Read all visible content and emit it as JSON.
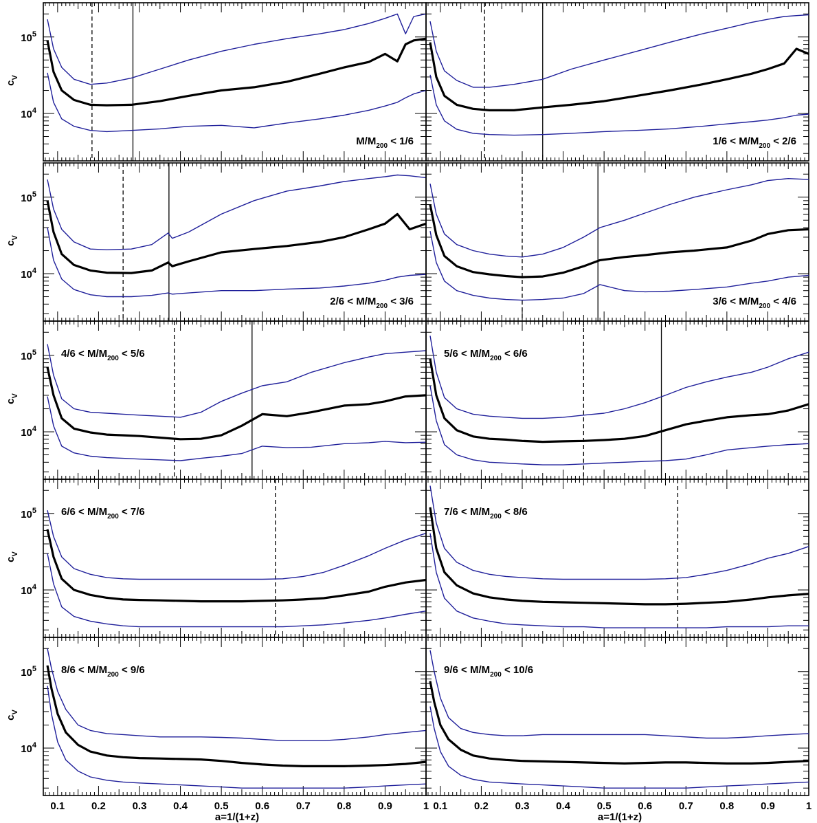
{
  "chart_data": {
    "type": "line",
    "xlabel": "a=1/(1+z)",
    "ylabel": "c",
    "ylabel_sub": "V",
    "yscale": "log",
    "xlim": [
      0.065,
      1.0
    ],
    "ylim": [
      2400,
      280000
    ],
    "x_ticks": [
      "0.1",
      "0.2",
      "0.3",
      "0.4",
      "0.5",
      "0.6",
      "0.7",
      "0.8",
      "0.9",
      "1"
    ],
    "y_ticks": [
      {
        "value": 10000,
        "base": "10",
        "exp": "4"
      },
      {
        "value": 100000,
        "base": "10",
        "exp": "5"
      }
    ],
    "series_colors": {
      "median": "#000000",
      "upper": "#1f1f9a",
      "lower": "#1f1f9a"
    },
    "panels": [
      {
        "label": "M/M",
        "label_sub": "200",
        "label_rest": " < 1/6",
        "label_pos": "bottom-right",
        "dashed_x": 0.184,
        "solid_x": 0.284,
        "x": [
          0.075,
          0.09,
          0.11,
          0.14,
          0.18,
          0.22,
          0.28,
          0.35,
          0.42,
          0.5,
          0.58,
          0.66,
          0.74,
          0.8,
          0.86,
          0.9,
          0.93,
          0.95,
          0.97,
          1.0
        ],
        "median": [
          90000,
          35000,
          20000,
          15000,
          13000,
          12800,
          13000,
          14500,
          17000,
          20000,
          22000,
          26000,
          33000,
          40000,
          47000,
          60000,
          48000,
          80000,
          90000,
          95000
        ],
        "upper": [
          170000,
          70000,
          40000,
          28000,
          24000,
          25000,
          29000,
          38000,
          50000,
          65000,
          80000,
          95000,
          110000,
          125000,
          150000,
          175000,
          200000,
          110000,
          185000,
          200000
        ],
        "lower": [
          34000,
          14000,
          8500,
          6800,
          6000,
          5800,
          6000,
          6300,
          6800,
          7000,
          6500,
          7500,
          8500,
          9500,
          11000,
          12500,
          14000,
          16000,
          18000,
          20000
        ]
      },
      {
        "label": "1/6 < M/M",
        "label_sub": "200",
        "label_rest": " < 2/6",
        "label_pos": "bottom-right",
        "dashed_x": 0.208,
        "solid_x": 0.35,
        "x": [
          0.075,
          0.09,
          0.11,
          0.14,
          0.18,
          0.22,
          0.28,
          0.35,
          0.42,
          0.5,
          0.58,
          0.66,
          0.74,
          0.8,
          0.86,
          0.9,
          0.94,
          0.97,
          1.0
        ],
        "median": [
          85000,
          30000,
          17000,
          13000,
          11500,
          11000,
          11000,
          12000,
          13000,
          14500,
          17000,
          20000,
          24000,
          28000,
          33000,
          38000,
          45000,
          70000,
          60000
        ],
        "upper": [
          160000,
          65000,
          36000,
          27000,
          22000,
          22000,
          24000,
          28000,
          38000,
          50000,
          65000,
          85000,
          110000,
          130000,
          155000,
          170000,
          185000,
          190000,
          195000
        ],
        "lower": [
          32000,
          13000,
          8000,
          6200,
          5500,
          5300,
          5200,
          5300,
          5500,
          5800,
          6000,
          6300,
          6800,
          7300,
          7800,
          8200,
          8800,
          9500,
          9800
        ]
      },
      {
        "label": "2/6 < M/M",
        "label_sub": "200",
        "label_rest": " < 3/6",
        "label_pos": "bottom-right",
        "dashed_x": 0.26,
        "solid_x": 0.372,
        "x": [
          0.075,
          0.09,
          0.11,
          0.14,
          0.18,
          0.22,
          0.28,
          0.33,
          0.37,
          0.38,
          0.42,
          0.5,
          0.58,
          0.66,
          0.74,
          0.8,
          0.86,
          0.9,
          0.93,
          0.96,
          1.0
        ],
        "median": [
          90000,
          35000,
          18000,
          13000,
          11000,
          10300,
          10200,
          11000,
          14000,
          12500,
          14500,
          19000,
          21000,
          23000,
          26000,
          30000,
          38000,
          45000,
          60000,
          38000,
          45000
        ],
        "upper": [
          170000,
          70000,
          38000,
          26000,
          21000,
          20500,
          21000,
          24000,
          34000,
          29000,
          35000,
          60000,
          90000,
          120000,
          140000,
          160000,
          175000,
          185000,
          195000,
          190000,
          180000
        ],
        "lower": [
          40000,
          15000,
          8500,
          6200,
          5300,
          5000,
          5000,
          5200,
          5600,
          5400,
          5600,
          6000,
          6000,
          6300,
          6500,
          6900,
          7500,
          8200,
          9000,
          9500,
          9800
        ]
      },
      {
        "label": "3/6 < M/M",
        "label_sub": "200",
        "label_rest": " < 4/6",
        "label_pos": "bottom-right",
        "dashed_x": 0.3,
        "solid_x": 0.485,
        "x": [
          0.075,
          0.09,
          0.11,
          0.14,
          0.18,
          0.22,
          0.26,
          0.3,
          0.35,
          0.4,
          0.45,
          0.49,
          0.55,
          0.6,
          0.66,
          0.72,
          0.8,
          0.86,
          0.9,
          0.95,
          1.0
        ],
        "median": [
          80000,
          32000,
          17000,
          12500,
          10500,
          9800,
          9300,
          9000,
          9200,
          10300,
          12500,
          15000,
          16500,
          17500,
          19000,
          20000,
          22000,
          27000,
          33000,
          37000,
          38000
        ],
        "upper": [
          150000,
          60000,
          33000,
          24000,
          20000,
          18000,
          17000,
          16500,
          18000,
          22000,
          30000,
          40000,
          50000,
          62000,
          80000,
          100000,
          125000,
          145000,
          165000,
          175000,
          170000
        ],
        "lower": [
          36000,
          14000,
          8000,
          6000,
          5200,
          4800,
          4600,
          4500,
          4600,
          4800,
          5500,
          7200,
          6000,
          5800,
          5900,
          6200,
          6700,
          7500,
          8000,
          9000,
          9500
        ]
      },
      {
        "label": "4/6 < M/M",
        "label_sub": "200",
        "label_rest": " < 5/6",
        "label_pos": "top-left",
        "dashed_x": 0.385,
        "solid_x": 0.575,
        "x": [
          0.075,
          0.09,
          0.11,
          0.14,
          0.18,
          0.22,
          0.26,
          0.3,
          0.35,
          0.4,
          0.45,
          0.5,
          0.55,
          0.6,
          0.66,
          0.72,
          0.8,
          0.86,
          0.9,
          0.95,
          1.0
        ],
        "median": [
          70000,
          30000,
          15000,
          11000,
          9800,
          9200,
          9000,
          8800,
          8400,
          8000,
          8100,
          9000,
          12000,
          17000,
          16000,
          18000,
          22000,
          23000,
          25000,
          29000,
          30000
        ],
        "upper": [
          140000,
          55000,
          27000,
          20000,
          18000,
          17500,
          17000,
          16500,
          16000,
          15500,
          18000,
          25000,
          32000,
          40000,
          45000,
          60000,
          80000,
          95000,
          105000,
          110000,
          115000
        ],
        "lower": [
          29000,
          12000,
          6500,
          5300,
          4800,
          4600,
          4500,
          4400,
          4300,
          4200,
          4500,
          4800,
          5200,
          6500,
          6200,
          6300,
          7000,
          7200,
          7500,
          7200,
          7300
        ]
      },
      {
        "label": "5/6 < M/M",
        "label_sub": "200",
        "label_rest": " < 6/6",
        "label_pos": "top-left",
        "dashed_x": 0.45,
        "solid_x": 0.64,
        "x": [
          0.075,
          0.09,
          0.11,
          0.14,
          0.18,
          0.22,
          0.26,
          0.3,
          0.35,
          0.4,
          0.45,
          0.5,
          0.55,
          0.6,
          0.65,
          0.7,
          0.75,
          0.8,
          0.86,
          0.9,
          0.95,
          1.0
        ],
        "median": [
          90000,
          30000,
          15000,
          10500,
          8700,
          8100,
          7900,
          7600,
          7400,
          7500,
          7600,
          7800,
          8100,
          8800,
          10500,
          12500,
          14000,
          15500,
          16500,
          17000,
          19000,
          23000
        ],
        "upper": [
          180000,
          60000,
          28000,
          20000,
          17000,
          16000,
          15500,
          15000,
          15000,
          15500,
          16500,
          17500,
          20000,
          24000,
          30000,
          38000,
          45000,
          52000,
          60000,
          70000,
          90000,
          110000
        ],
        "lower": [
          40000,
          14000,
          6800,
          5000,
          4300,
          4000,
          3900,
          3800,
          3700,
          3700,
          3800,
          3900,
          4000,
          4100,
          4200,
          4400,
          5000,
          5800,
          6200,
          6500,
          6800,
          7000
        ]
      },
      {
        "label": "6/6 < M/M",
        "label_sub": "200",
        "label_rest": " < 7/6",
        "label_pos": "top-left",
        "dashed_x": 0.632,
        "x": [
          0.075,
          0.09,
          0.11,
          0.14,
          0.18,
          0.22,
          0.26,
          0.3,
          0.35,
          0.4,
          0.45,
          0.5,
          0.55,
          0.6,
          0.65,
          0.7,
          0.75,
          0.8,
          0.86,
          0.9,
          0.95,
          1.0
        ],
        "median": [
          62000,
          27000,
          14000,
          10000,
          8600,
          7900,
          7500,
          7400,
          7300,
          7200,
          7100,
          7100,
          7100,
          7200,
          7300,
          7500,
          7800,
          8500,
          9500,
          11000,
          12500,
          13500
        ],
        "upper": [
          110000,
          50000,
          27000,
          19000,
          16000,
          14500,
          14000,
          13800,
          13800,
          13800,
          13800,
          13800,
          13800,
          13800,
          14000,
          15000,
          17000,
          21000,
          28000,
          35000,
          45000,
          55000
        ],
        "lower": [
          30000,
          12000,
          6000,
          4500,
          3900,
          3600,
          3400,
          3300,
          3300,
          3300,
          3300,
          3300,
          3300,
          3300,
          3300,
          3400,
          3500,
          3700,
          4000,
          4300,
          4800,
          5300
        ]
      },
      {
        "label": "7/6 < M/M",
        "label_sub": "200",
        "label_rest": " < 8/6",
        "label_pos": "top-left",
        "dashed_x": 0.68,
        "x": [
          0.075,
          0.09,
          0.11,
          0.14,
          0.18,
          0.22,
          0.26,
          0.3,
          0.35,
          0.4,
          0.45,
          0.5,
          0.55,
          0.6,
          0.65,
          0.7,
          0.75,
          0.8,
          0.86,
          0.9,
          0.95,
          1.0
        ],
        "median": [
          120000,
          35000,
          17000,
          11500,
          9000,
          8000,
          7500,
          7200,
          7000,
          6900,
          6800,
          6700,
          6600,
          6500,
          6500,
          6600,
          6800,
          7000,
          7500,
          8000,
          8500,
          8900
        ],
        "upper": [
          230000,
          75000,
          35000,
          23000,
          18000,
          16000,
          15000,
          14500,
          14000,
          13800,
          13800,
          13800,
          13800,
          13800,
          14000,
          14500,
          16000,
          18000,
          22000,
          26000,
          30000,
          37000
        ],
        "lower": [
          55000,
          17000,
          7800,
          5300,
          4300,
          3900,
          3600,
          3500,
          3400,
          3300,
          3300,
          3200,
          3200,
          3200,
          3200,
          3200,
          3200,
          3300,
          3300,
          3300,
          3400,
          3400
        ]
      },
      {
        "label": "8/6 < M/M",
        "label_sub": "200",
        "label_rest": " < 9/6",
        "label_pos": "top-left",
        "x": [
          0.075,
          0.085,
          0.1,
          0.12,
          0.15,
          0.18,
          0.22,
          0.26,
          0.3,
          0.35,
          0.4,
          0.45,
          0.5,
          0.55,
          0.6,
          0.65,
          0.7,
          0.75,
          0.8,
          0.86,
          0.9,
          0.95,
          1.0
        ],
        "median": [
          120000,
          60000,
          28000,
          16000,
          11000,
          9000,
          8000,
          7600,
          7400,
          7300,
          7200,
          7100,
          6800,
          6400,
          6100,
          5900,
          5800,
          5800,
          5800,
          5900,
          6000,
          6200,
          6600
        ],
        "upper": [
          200000,
          110000,
          55000,
          32000,
          20000,
          17000,
          15500,
          15000,
          14500,
          14000,
          14000,
          14000,
          13800,
          13500,
          13000,
          12500,
          12500,
          12500,
          13000,
          14000,
          15000,
          16000,
          17000
        ],
        "lower": [
          65000,
          28000,
          12000,
          7000,
          5000,
          4200,
          3800,
          3600,
          3500,
          3400,
          3300,
          3200,
          3100,
          3000,
          3000,
          3000,
          3000,
          3000,
          3000,
          3100,
          3200,
          3300,
          3400
        ]
      },
      {
        "label": "9/6 < M/M",
        "label_sub": "200",
        "label_rest": " < 10/6",
        "label_pos": "top-left",
        "x": [
          0.075,
          0.085,
          0.1,
          0.12,
          0.15,
          0.18,
          0.22,
          0.26,
          0.3,
          0.35,
          0.4,
          0.45,
          0.5,
          0.55,
          0.6,
          0.65,
          0.7,
          0.75,
          0.8,
          0.86,
          0.9,
          0.95,
          1.0
        ],
        "median": [
          75000,
          40000,
          20000,
          13000,
          9500,
          8000,
          7300,
          7000,
          6800,
          6700,
          6600,
          6500,
          6400,
          6300,
          6400,
          6500,
          6500,
          6400,
          6300,
          6300,
          6400,
          6600,
          6800
        ],
        "upper": [
          190000,
          100000,
          45000,
          25000,
          18000,
          16000,
          15000,
          14500,
          14500,
          15000,
          15000,
          15000,
          15000,
          15000,
          15000,
          14500,
          14000,
          13500,
          13500,
          14000,
          14500,
          15000,
          15500
        ],
        "lower": [
          35000,
          18000,
          9000,
          5800,
          4400,
          3900,
          3600,
          3500,
          3400,
          3300,
          3200,
          3100,
          3000,
          3000,
          3000,
          3000,
          3000,
          3100,
          3200,
          3300,
          3400,
          3500,
          3600
        ]
      }
    ]
  }
}
